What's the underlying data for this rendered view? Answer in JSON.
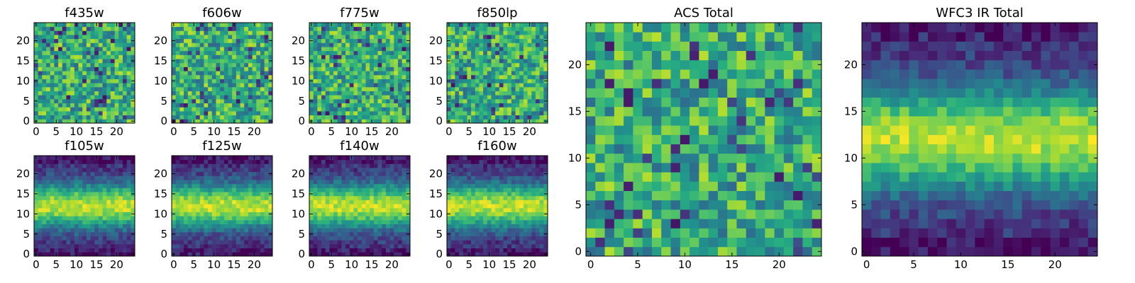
{
  "chart_data": [
    {
      "type": "heatmap",
      "title": "f435w",
      "xlim": [
        0,
        25
      ],
      "ylim": [
        0,
        25
      ],
      "xticks": [
        0,
        5,
        10,
        15,
        20
      ],
      "yticks": [
        0,
        5,
        10,
        15,
        20
      ],
      "grid": false,
      "profile": "noise"
    },
    {
      "type": "heatmap",
      "title": "f606w",
      "xlim": [
        0,
        25
      ],
      "ylim": [
        0,
        25
      ],
      "xticks": [
        0,
        5,
        10,
        15,
        20
      ],
      "yticks": [
        0,
        5,
        10,
        15,
        20
      ],
      "grid": false,
      "profile": "noise"
    },
    {
      "type": "heatmap",
      "title": "f775w",
      "xlim": [
        0,
        25
      ],
      "ylim": [
        0,
        25
      ],
      "xticks": [
        0,
        5,
        10,
        15,
        20
      ],
      "yticks": [
        0,
        5,
        10,
        15,
        20
      ],
      "grid": false,
      "profile": "noise"
    },
    {
      "type": "heatmap",
      "title": "f850lp",
      "xlim": [
        0,
        25
      ],
      "ylim": [
        0,
        25
      ],
      "xticks": [
        0,
        5,
        10,
        15,
        20
      ],
      "yticks": [
        0,
        5,
        10,
        15,
        20
      ],
      "grid": false,
      "profile": "noise"
    },
    {
      "type": "heatmap",
      "title": "f105w",
      "xlim": [
        0,
        25
      ],
      "ylim": [
        0,
        25
      ],
      "xticks": [
        0,
        5,
        10,
        15,
        20
      ],
      "yticks": [
        0,
        5,
        10,
        15,
        20
      ],
      "grid": false,
      "profile": "band",
      "band_center_y": 12
    },
    {
      "type": "heatmap",
      "title": "f125w",
      "xlim": [
        0,
        25
      ],
      "ylim": [
        0,
        25
      ],
      "xticks": [
        0,
        5,
        10,
        15,
        20
      ],
      "yticks": [
        0,
        5,
        10,
        15,
        20
      ],
      "grid": false,
      "profile": "band",
      "band_center_y": 12
    },
    {
      "type": "heatmap",
      "title": "f140w",
      "xlim": [
        0,
        25
      ],
      "ylim": [
        0,
        25
      ],
      "xticks": [
        0,
        5,
        10,
        15,
        20
      ],
      "yticks": [
        0,
        5,
        10,
        15,
        20
      ],
      "grid": false,
      "profile": "band",
      "band_center_y": 12
    },
    {
      "type": "heatmap",
      "title": "f160w",
      "xlim": [
        0,
        25
      ],
      "ylim": [
        0,
        25
      ],
      "xticks": [
        0,
        5,
        10,
        15,
        20
      ],
      "yticks": [
        0,
        5,
        10,
        15,
        20
      ],
      "grid": false,
      "profile": "band",
      "band_center_y": 12
    },
    {
      "type": "heatmap",
      "title": "ACS Total",
      "xlim": [
        0,
        25
      ],
      "ylim": [
        0,
        25
      ],
      "xticks": [
        0,
        5,
        10,
        15,
        20
      ],
      "yticks": [
        0,
        5,
        10,
        15,
        20
      ],
      "grid": false,
      "profile": "noise"
    },
    {
      "type": "heatmap",
      "title": "WFC3 IR Total",
      "xlim": [
        0,
        25
      ],
      "ylim": [
        0,
        25
      ],
      "xticks": [
        0,
        5,
        10,
        15,
        20
      ],
      "yticks": [
        0,
        5,
        10,
        15,
        20
      ],
      "grid": false,
      "profile": "band",
      "band_center_y": 12
    }
  ],
  "colormap": "viridis",
  "colors": {
    "viridis": [
      "#440154",
      "#472d7b",
      "#3b528b",
      "#2c728e",
      "#21918c",
      "#28ae80",
      "#5ec962",
      "#addc30",
      "#fde725"
    ]
  }
}
